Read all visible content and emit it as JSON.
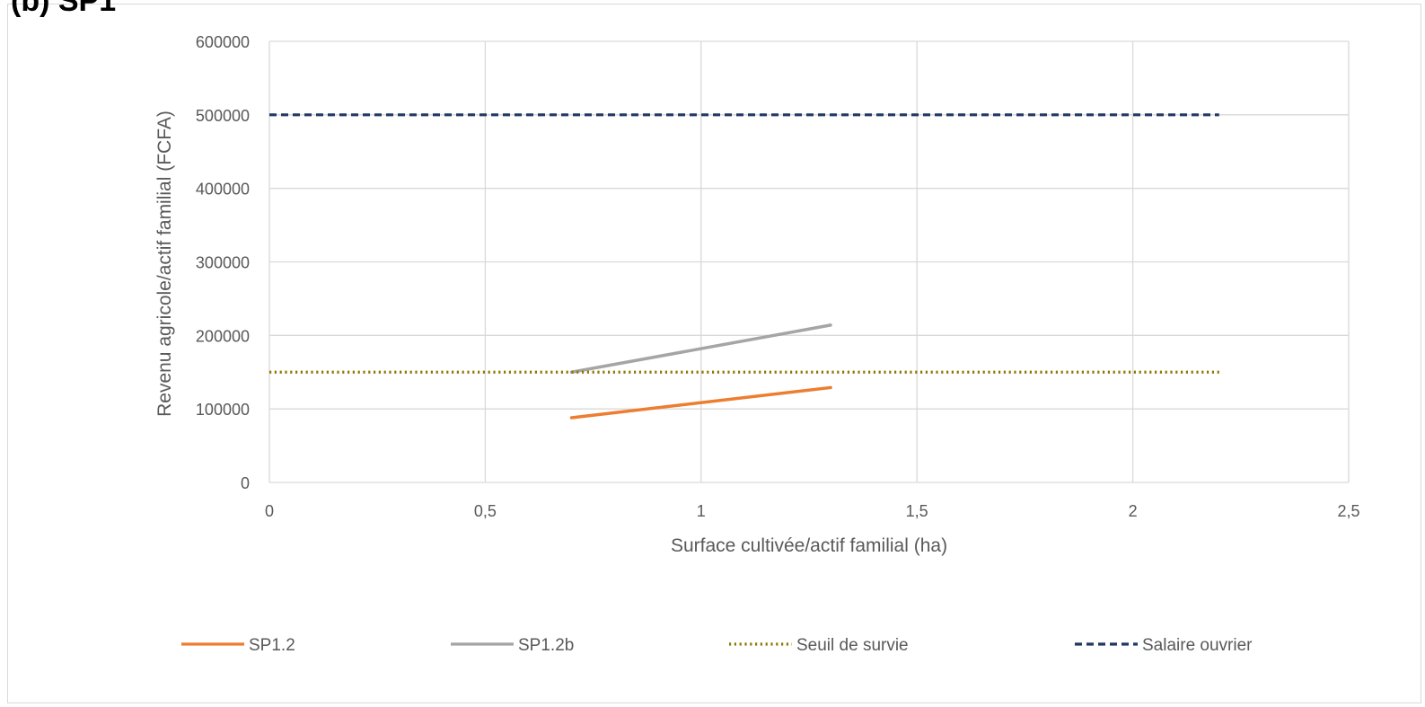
{
  "header": {
    "text": "(b) SP1"
  },
  "chart_data": {
    "type": "line",
    "xlabel": "Surface cultivée/actif familial (ha)",
    "ylabel": "Revenu agricole/actif familial (FCFA)",
    "xlim": [
      0,
      2.5
    ],
    "ylim": [
      0,
      600000
    ],
    "x_ticks": [
      "0",
      "0,5",
      "1",
      "1,5",
      "2",
      "2,5"
    ],
    "x_tick_values": [
      0,
      0.5,
      1,
      1.5,
      2,
      2.5
    ],
    "y_ticks": [
      "0",
      "100000",
      "200000",
      "300000",
      "400000",
      "500000",
      "600000"
    ],
    "y_tick_values": [
      0,
      100000,
      200000,
      300000,
      400000,
      500000,
      600000
    ],
    "grid": true,
    "legend_position": "bottom",
    "series": [
      {
        "name": "SP1.2",
        "color": "#ED7D31",
        "dash": "solid",
        "x": [
          0.7,
          1.3
        ],
        "y": [
          88000,
          129000
        ]
      },
      {
        "name": "SP1.2b",
        "color": "#A5A5A5",
        "dash": "solid",
        "x": [
          0.7,
          1.3
        ],
        "y": [
          150000,
          214000
        ]
      },
      {
        "name": "Seuil de survie",
        "color": "#8B7A00",
        "dash": "dotted",
        "x": [
          0,
          2.2
        ],
        "y": [
          150000,
          150000
        ]
      },
      {
        "name": "Salaire ouvrier",
        "color": "#203864",
        "dash": "dashed",
        "x": [
          0,
          2.2
        ],
        "y": [
          500000,
          500000
        ]
      }
    ]
  }
}
